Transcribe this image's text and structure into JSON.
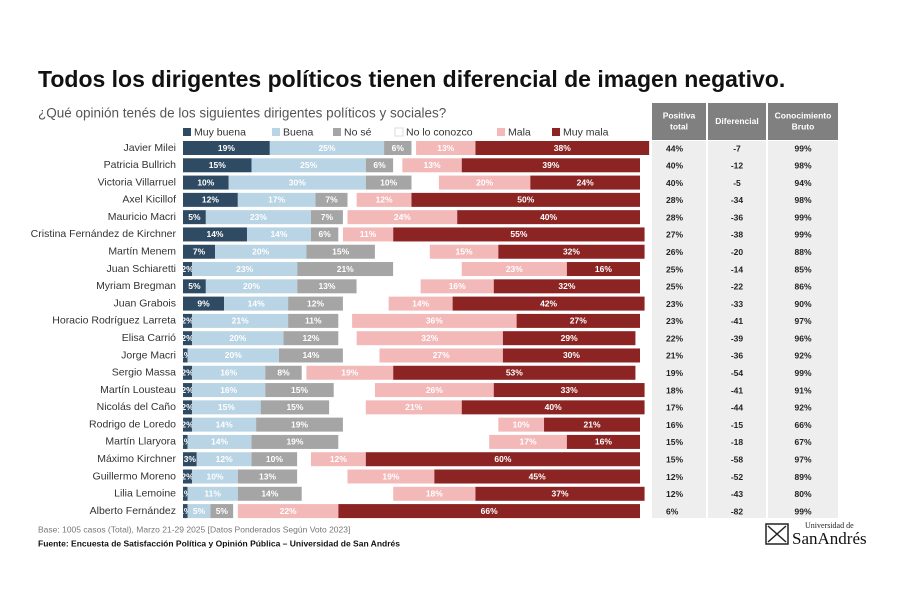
{
  "chart_data": {
    "type": "stacked_barh",
    "title": "Todos los dirigentes políticos tienen diferencial de imagen negativo.",
    "subtitle": "¿Qué opinión tenés de los siguientes dirigentes políticos y sociales?",
    "categories": [
      "Javier Milei",
      "Patricia Bullrich",
      "Victoria Villarruel",
      "Axel Kicillof",
      "Mauricio Macri",
      "Cristina Fernández de Kirchner",
      "Martín Menem",
      "Juan Schiaretti",
      "Myriam Bregman",
      "Juan Grabois",
      "Horacio Rodríguez Larreta",
      "Elisa Carrió",
      "Jorge Macri",
      "Sergio Massa",
      "Martín Lousteau",
      "Nicolás del Caño",
      "Rodrigo de Loredo",
      "Martín Llaryora",
      "Máximo Kirchner",
      "Guillermo Moreno",
      "Lilia Lemoine",
      "Alberto Fernández"
    ],
    "xlim": [
      0,
      100
    ],
    "series": [
      {
        "name": "Muy buena",
        "color": "#2f4a63",
        "text_color": "#ffffff",
        "values": [
          19,
          15,
          10,
          12,
          5,
          14,
          7,
          2,
          5,
          9,
          2,
          2,
          1,
          2,
          2,
          2,
          2,
          1,
          3,
          2,
          1,
          1
        ],
        "value_labels": [
          "19%",
          "15%",
          "10%",
          "12%",
          "5%",
          "14%",
          "7%",
          "2%",
          "5%",
          "9%",
          "2%",
          "2%",
          "1%",
          "2%",
          "2%",
          "2%",
          "2%",
          "1%",
          "3%",
          "2%",
          "1%",
          "1%"
        ]
      },
      {
        "name": "Buena",
        "color": "#b9d4e4",
        "text_color": "#ffffff",
        "values": [
          25,
          25,
          30,
          17,
          23,
          14,
          20,
          23,
          20,
          14,
          21,
          20,
          20,
          16,
          16,
          15,
          14,
          14,
          12,
          10,
          11,
          5
        ],
        "value_labels": [
          "25%",
          "25%",
          "30%",
          "17%",
          "23%",
          "14%",
          "20%",
          "23%",
          "20%",
          "14%",
          "21%",
          "20%",
          "20%",
          "16%",
          "16%",
          "15%",
          "14%",
          "14%",
          "12%",
          "10%",
          "11%",
          "5%"
        ]
      },
      {
        "name": "No sé",
        "color": "#a5a5a5",
        "text_color": "#ffffff",
        "values": [
          6,
          6,
          10,
          7,
          7,
          6,
          15,
          21,
          13,
          12,
          11,
          12,
          14,
          8,
          15,
          15,
          19,
          19,
          10,
          13,
          14,
          5
        ],
        "value_labels": [
          "6%",
          "6%",
          "10%",
          "7%",
          "7%",
          "6%",
          "15%",
          "21%",
          "13%",
          "12%",
          "11%",
          "12%",
          "14%",
          "8%",
          "15%",
          "15%",
          "19%",
          "19%",
          "10%",
          "13%",
          "14%",
          "5%"
        ]
      },
      {
        "name": "No lo conozco",
        "color": "#ffffff",
        "text_color": "#999999",
        "values": [
          1,
          2,
          6,
          2,
          1,
          1,
          12,
          15,
          14,
          10,
          3,
          4,
          8,
          1,
          9,
          8,
          34,
          33,
          3,
          11,
          20,
          1
        ]
      },
      {
        "name": "Mala",
        "color": "#f3b9b9",
        "text_color": "#ffffff",
        "values": [
          13,
          13,
          20,
          12,
          24,
          11,
          15,
          23,
          16,
          14,
          36,
          32,
          27,
          19,
          26,
          21,
          10,
          17,
          12,
          19,
          18,
          22
        ],
        "value_labels": [
          "13%",
          "13%",
          "20%",
          "12%",
          "24%",
          "11%",
          "15%",
          "23%",
          "16%",
          "14%",
          "36%",
          "32%",
          "27%",
          "19%",
          "26%",
          "21%",
          "10%",
          "17%",
          "12%",
          "19%",
          "18%",
          "22%"
        ]
      },
      {
        "name": "Muy mala",
        "color": "#8c2424",
        "text_color": "#ffffff",
        "values": [
          38,
          39,
          24,
          50,
          40,
          55,
          32,
          16,
          32,
          42,
          27,
          29,
          30,
          53,
          33,
          40,
          21,
          16,
          60,
          45,
          37,
          66
        ],
        "value_labels": [
          "38%",
          "39%",
          "24%",
          "50%",
          "40%",
          "55%",
          "32%",
          "16%",
          "32%",
          "42%",
          "27%",
          "29%",
          "30%",
          "53%",
          "33%",
          "40%",
          "21%",
          "16%",
          "60%",
          "45%",
          "37%",
          "66%"
        ]
      }
    ],
    "table": {
      "columns": [
        "Positiva total",
        "Diferencial",
        "Conocimiento Bruto"
      ],
      "rows": [
        [
          "44%",
          "-7",
          "99%"
        ],
        [
          "40%",
          "-12",
          "98%"
        ],
        [
          "40%",
          "-5",
          "94%"
        ],
        [
          "28%",
          "-34",
          "98%"
        ],
        [
          "28%",
          "-36",
          "99%"
        ],
        [
          "27%",
          "-38",
          "99%"
        ],
        [
          "26%",
          "-20",
          "88%"
        ],
        [
          "25%",
          "-14",
          "85%"
        ],
        [
          "25%",
          "-22",
          "86%"
        ],
        [
          "23%",
          "-33",
          "90%"
        ],
        [
          "23%",
          "-41",
          "97%"
        ],
        [
          "22%",
          "-39",
          "96%"
        ],
        [
          "21%",
          "-36",
          "92%"
        ],
        [
          "19%",
          "-54",
          "99%"
        ],
        [
          "18%",
          "-41",
          "91%"
        ],
        [
          "17%",
          "-44",
          "92%"
        ],
        [
          "16%",
          "-15",
          "66%"
        ],
        [
          "15%",
          "-18",
          "67%"
        ],
        [
          "15%",
          "-58",
          "97%"
        ],
        [
          "12%",
          "-52",
          "89%"
        ],
        [
          "12%",
          "-43",
          "80%"
        ],
        [
          "6%",
          "-82",
          "99%"
        ]
      ]
    },
    "note": "Base: 1005 casos (Total), Marzo 21-29 2025 [Datos Ponderados Según Voto 2023]",
    "source": "Fuente: Encuesta de Satisfacción Política y Opinión Pública – Universidad de San Andrés",
    "logo": {
      "top": "Universidad de",
      "main": "SanAndrés"
    }
  }
}
